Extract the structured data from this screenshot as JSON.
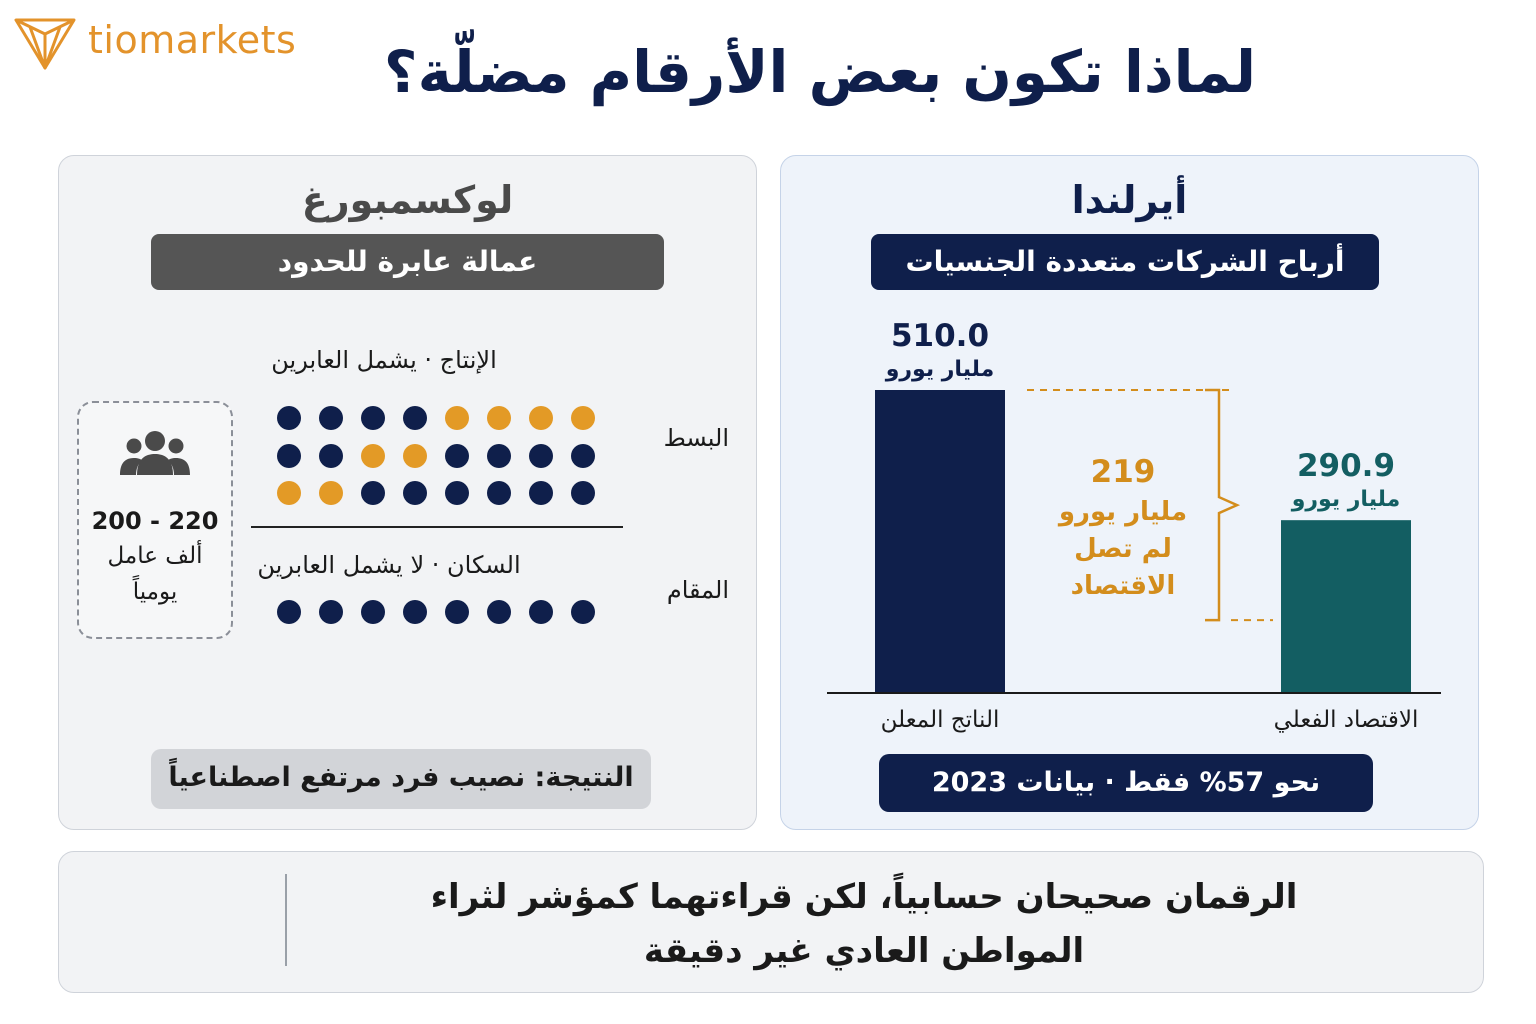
{
  "brand": {
    "name": "tiomarkets",
    "color": "#e3932b"
  },
  "title": "لماذا تكون بعض الأرقام مضلّة؟",
  "luxembourg": {
    "title": "لوكسمبورغ",
    "banner": "عمالة عابرة للحدود",
    "production_label": "الإنتاج · يشمل العابرين",
    "numerator_label": "البسط",
    "population_label": "السكان · لا يشمل العابرين",
    "denominator_label": "المقام",
    "workers_icon": "people-group-icon",
    "workers_range": "200 - 220",
    "workers_unit": "ألف عامل",
    "workers_freq": "يومياً",
    "result": "النتيجة: نصيب فرد مرتفع اصطناعياً",
    "dot_colors": {
      "resident": "#0f1f4b",
      "cross_border": "#e39a26"
    },
    "numerator_rows": [
      [
        "resident",
        "resident",
        "resident",
        "resident",
        "cross",
        "cross",
        "cross",
        "cross"
      ],
      [
        "resident",
        "resident",
        "cross",
        "cross",
        "resident",
        "resident",
        "resident",
        "resident"
      ],
      [
        "cross",
        "cross",
        "resident",
        "resident",
        "resident",
        "resident",
        "resident",
        "resident"
      ]
    ],
    "denominator_row": [
      "resident",
      "resident",
      "resident",
      "resident",
      "resident",
      "resident",
      "resident",
      "resident"
    ]
  },
  "ireland": {
    "title": "أيرلندا",
    "banner": "أرباح الشركات متعددة الجنسيات",
    "footer": "نحو 57% فقط · بيانات 2023",
    "gap_value": "219",
    "gap_text": [
      "مليار يورو",
      "لم تصل",
      "الاقتصاد"
    ],
    "gap_color": "#d38d1c"
  },
  "chart_data": {
    "type": "bar",
    "categories": [
      "الناتج المعلن",
      "الاقتصاد الفعلي"
    ],
    "values": [
      510.0,
      290.9
    ],
    "value_labels": [
      "510.0",
      "290.9"
    ],
    "unit": "مليار يورو",
    "colors": [
      "#0f1f4b",
      "#135e62"
    ],
    "value_label_colors": [
      "#0f1f4b",
      "#135e62"
    ],
    "difference": 219,
    "ylim": [
      0,
      510
    ],
    "grid": false,
    "title": "",
    "xlabel": "",
    "ylabel": ""
  },
  "note": "الرقمان صحيحان حسابياً، لكن قراءتهما كمؤشر لثراء المواطن العادي غير دقيقة"
}
